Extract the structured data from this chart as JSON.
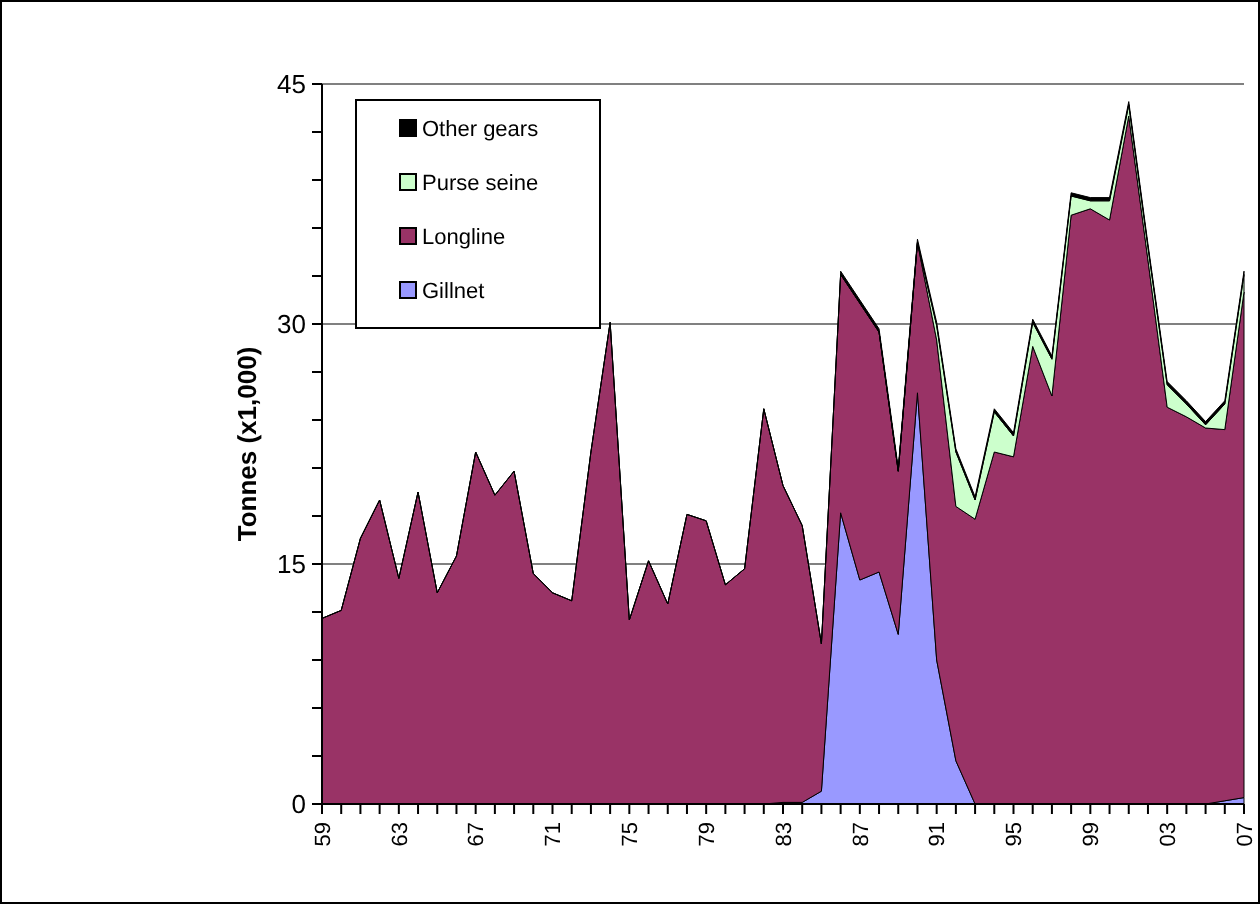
{
  "chart_data": {
    "type": "area",
    "stacked": true,
    "ylabel": "Tonnes (x1,000)",
    "categories": [
      "59",
      null,
      null,
      null,
      "63",
      null,
      null,
      null,
      "67",
      null,
      null,
      null,
      "71",
      null,
      null,
      null,
      "75",
      null,
      null,
      null,
      "79",
      null,
      null,
      null,
      "83",
      null,
      null,
      null,
      "87",
      null,
      null,
      null,
      "91",
      null,
      null,
      null,
      "95",
      null,
      null,
      null,
      "99",
      null,
      null,
      null,
      "03",
      null,
      null,
      null,
      "07"
    ],
    "series": [
      {
        "name": "Gillnet",
        "color": "#9999ff",
        "values": [
          0,
          0,
          0,
          0,
          0,
          0,
          0,
          0,
          0,
          0,
          0,
          0,
          0,
          0,
          0,
          0,
          0,
          0,
          0,
          0,
          0,
          0,
          0,
          0,
          0.1,
          0.1,
          0.8,
          18.2,
          14.0,
          14.5,
          10.6,
          25.7,
          9.0,
          2.7,
          0,
          0,
          0,
          0,
          0,
          0,
          0,
          0,
          0,
          0,
          0,
          0,
          0,
          0.2,
          0.4
        ]
      },
      {
        "name": "Longline",
        "color": "#993366",
        "values": [
          11.6,
          12.1,
          16.6,
          19.0,
          14.1,
          19.5,
          13.2,
          15.5,
          22.0,
          19.3,
          20.8,
          14.4,
          13.2,
          12.7,
          22.0,
          30.1,
          11.5,
          15.2,
          12.5,
          18.1,
          17.7,
          13.7,
          14.7,
          24.7,
          19.8,
          17.3,
          9.2,
          14.9,
          17.3,
          15.0,
          10.2,
          9.4,
          20.0,
          15.9,
          17.8,
          22.0,
          21.7,
          28.6,
          25.5,
          36.8,
          37.2,
          36.5,
          43.0,
          34.0,
          24.8,
          24.2,
          23.5,
          23.2,
          31.6
        ]
      },
      {
        "name": "Purse seine",
        "color": "#ccffcc",
        "values": [
          0,
          0,
          0,
          0,
          0,
          0,
          0,
          0,
          0,
          0,
          0,
          0,
          0,
          0,
          0,
          0,
          0,
          0,
          0,
          0,
          0,
          0,
          0,
          0,
          0,
          0,
          0,
          0,
          0,
          0,
          0,
          0,
          0.9,
          3.4,
          1.2,
          2.5,
          1.3,
          1.5,
          2.3,
          1.2,
          0.5,
          1.2,
          0.7,
          0.8,
          1.4,
          0.8,
          0.2,
          1.6,
          1.1
        ]
      },
      {
        "name": "Other gears",
        "color": "#000000",
        "values": [
          null,
          null,
          null,
          null,
          null,
          null,
          null,
          null,
          null,
          null,
          null,
          null,
          null,
          null,
          null,
          null,
          null,
          null,
          null,
          null,
          null,
          null,
          null,
          null,
          null,
          null,
          null,
          0.2,
          0.2,
          0.2,
          0.2,
          0.2,
          0.2,
          0.2,
          0.2,
          0.2,
          0.2,
          0.2,
          0.2,
          0.2,
          0.2,
          0.2,
          0.2,
          0.2,
          0.2,
          0.2,
          0.2,
          0.2,
          0.2
        ]
      }
    ],
    "ylim": [
      0,
      45
    ],
    "yticks": [
      0,
      {
        "value": 3,
        "label": null
      },
      {
        "value": 6,
        "label": null
      },
      {
        "value": 9,
        "label": null
      },
      {
        "value": 12,
        "label": null
      },
      15,
      {
        "value": 18,
        "label": null
      },
      {
        "value": 21,
        "label": null
      },
      {
        "value": 24,
        "label": null
      },
      {
        "value": 27,
        "label": null
      },
      30,
      {
        "value": 33,
        "label": null
      },
      {
        "value": 36,
        "label": null
      },
      {
        "value": 39,
        "label": null
      },
      {
        "value": 42,
        "label": null
      },
      45
    ],
    "grid": "y",
    "legend": "top left"
  }
}
